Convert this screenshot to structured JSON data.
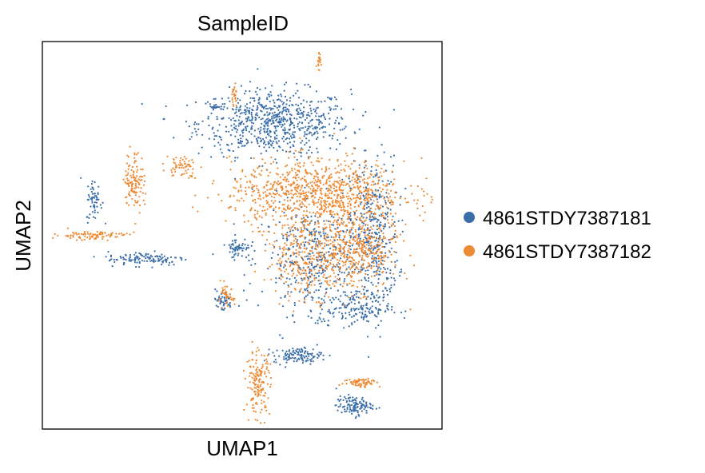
{
  "chart_data": {
    "type": "scatter",
    "title": "SampleID",
    "xlabel": "UMAP1",
    "ylabel": "UMAP2",
    "xlim": [
      0,
      10
    ],
    "ylim": [
      0,
      10
    ],
    "grid": false,
    "ticks": false,
    "legend_placement": "right",
    "series": [
      {
        "name": "4861STDY7387181",
        "color": "#3a6ea9",
        "clusters": [
          {
            "cx": 5.8,
            "cy": 7.9,
            "rx": 1.9,
            "ry": 0.85,
            "count": 700
          },
          {
            "cx": 8.3,
            "cy": 5.0,
            "rx": 0.6,
            "ry": 2.0,
            "count": 350
          },
          {
            "cx": 6.9,
            "cy": 4.4,
            "rx": 1.4,
            "ry": 1.4,
            "count": 450
          },
          {
            "cx": 7.8,
            "cy": 3.1,
            "rx": 0.9,
            "ry": 0.45,
            "count": 150
          },
          {
            "cx": 2.6,
            "cy": 4.4,
            "rx": 1.0,
            "ry": 0.18,
            "count": 120
          },
          {
            "cx": 1.3,
            "cy": 5.9,
            "rx": 0.2,
            "ry": 0.55,
            "count": 60
          },
          {
            "cx": 4.9,
            "cy": 4.7,
            "rx": 0.3,
            "ry": 0.25,
            "count": 60
          },
          {
            "cx": 4.5,
            "cy": 3.3,
            "rx": 0.25,
            "ry": 0.28,
            "count": 50
          },
          {
            "cx": 6.4,
            "cy": 1.9,
            "rx": 0.6,
            "ry": 0.2,
            "count": 120
          },
          {
            "cx": 7.8,
            "cy": 0.6,
            "rx": 0.45,
            "ry": 0.25,
            "count": 120
          },
          {
            "cx": 4.3,
            "cy": 8.3,
            "rx": 0.2,
            "ry": 0.04,
            "count": 20
          }
        ]
      },
      {
        "name": "4861STDY7387182",
        "color": "#ee8a33",
        "clusters": [
          {
            "cx": 6.9,
            "cy": 6.1,
            "rx": 2.2,
            "ry": 0.85,
            "count": 900
          },
          {
            "cx": 7.8,
            "cy": 4.6,
            "rx": 1.1,
            "ry": 1.0,
            "count": 450
          },
          {
            "cx": 6.6,
            "cy": 4.4,
            "rx": 1.0,
            "ry": 1.0,
            "count": 250
          },
          {
            "cx": 2.3,
            "cy": 6.4,
            "rx": 0.25,
            "ry": 0.75,
            "count": 120
          },
          {
            "cx": 3.5,
            "cy": 6.8,
            "rx": 0.4,
            "ry": 0.3,
            "count": 60
          },
          {
            "cx": 1.2,
            "cy": 5.0,
            "rx": 0.9,
            "ry": 0.12,
            "count": 90
          },
          {
            "cx": 4.8,
            "cy": 8.6,
            "rx": 0.08,
            "ry": 0.3,
            "count": 25
          },
          {
            "cx": 6.9,
            "cy": 9.5,
            "rx": 0.08,
            "ry": 0.2,
            "count": 20
          },
          {
            "cx": 4.6,
            "cy": 3.4,
            "rx": 0.2,
            "ry": 0.3,
            "count": 40
          },
          {
            "cx": 5.4,
            "cy": 1.2,
            "rx": 0.3,
            "ry": 0.8,
            "count": 160
          },
          {
            "cx": 8.0,
            "cy": 1.2,
            "rx": 0.45,
            "ry": 0.12,
            "count": 70
          }
        ]
      }
    ]
  }
}
